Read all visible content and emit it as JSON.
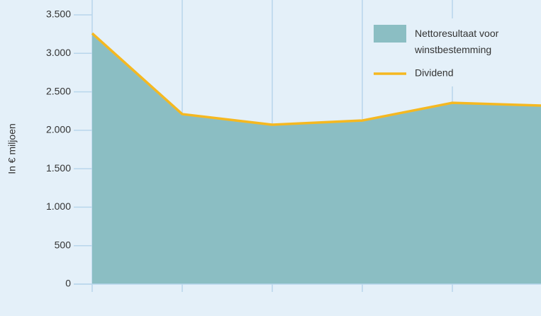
{
  "chart_data": {
    "type": "area",
    "y_label": "In € miljoen",
    "categories": [
      null,
      null,
      null,
      null,
      null,
      null
    ],
    "series": [
      {
        "name": "Nettoresultaat voor winstbestemming",
        "type": "area",
        "color": "#8bbec3",
        "values": [
          3260,
          2210,
          2072,
          2127,
          2357,
          2320
        ]
      },
      {
        "name": "Dividend",
        "type": "line",
        "color": "#f5b820",
        "values": [
          3260,
          2210,
          2072,
          2127,
          2357,
          2320
        ]
      }
    ],
    "ylim": [
      0,
      3500
    ],
    "yticks": [
      0,
      500,
      {
        "value": 1000,
        "label": "1.000"
      },
      {
        "value": 1500,
        "label": "1.500"
      },
      {
        "value": 2000,
        "label": "2.000"
      },
      {
        "value": 2500,
        "label": "2.500"
      },
      {
        "value": 3000,
        "label": "3.000"
      },
      {
        "value": 3500,
        "label": "3.500"
      }
    ],
    "grid": true,
    "legend": "upper right"
  }
}
